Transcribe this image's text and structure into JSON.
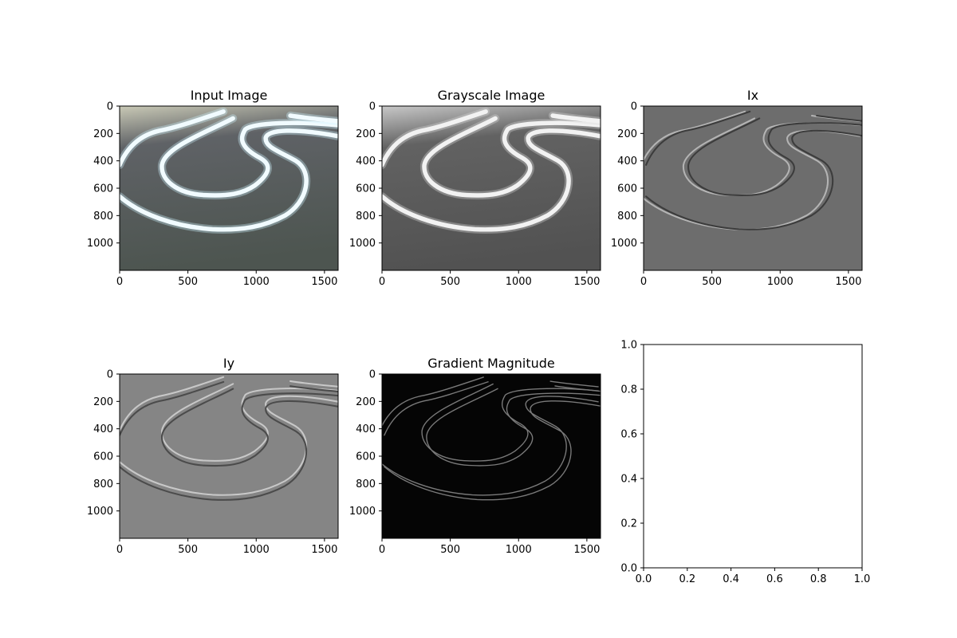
{
  "figure": {
    "background": "#ffffff"
  },
  "panels": [
    {
      "id": "input",
      "title": "Input Image",
      "kind": "image",
      "style": "color",
      "xticks": [
        0,
        500,
        1000,
        1500
      ],
      "yticks": [
        0,
        200,
        400,
        600,
        800,
        1000
      ],
      "xlim": [
        0,
        1600
      ],
      "ylim": [
        1200,
        0
      ],
      "colors": {
        "bg_top": "#c9c9b6",
        "bg_mid": "#5f6266",
        "bg_bot": "#4d5550",
        "line": "#f1fbff",
        "glow": "#cdf3ff"
      }
    },
    {
      "id": "gray",
      "title": "Grayscale Image",
      "kind": "image",
      "style": "gray",
      "xticks": [
        0,
        500,
        1000,
        1500
      ],
      "yticks": [
        0,
        200,
        400,
        600,
        800,
        1000
      ],
      "xlim": [
        0,
        1600
      ],
      "ylim": [
        1200,
        0
      ],
      "colors": {
        "bg_top": "#c8c8c8",
        "bg_mid": "#626262",
        "bg_bot": "#525252",
        "line": "#f2f2f2",
        "glow": "#dadada"
      }
    },
    {
      "id": "ix",
      "title": "Ix",
      "kind": "image",
      "style": "gradient",
      "xticks": [
        0,
        500,
        1000,
        1500
      ],
      "yticks": [
        0,
        200,
        400,
        600,
        800,
        1000
      ],
      "xlim": [
        0,
        1600
      ],
      "ylim": [
        1200,
        0
      ],
      "colors": {
        "bg": "#6d6d6d",
        "hi": "#b4b4b4",
        "lo": "#3c3c3c"
      }
    },
    {
      "id": "iy",
      "title": "Iy",
      "kind": "image",
      "style": "gradient",
      "xticks": [
        0,
        500,
        1000,
        1500
      ],
      "yticks": [
        0,
        200,
        400,
        600,
        800,
        1000
      ],
      "xlim": [
        0,
        1600
      ],
      "ylim": [
        1200,
        0
      ],
      "colors": {
        "bg": "#858585",
        "hi": "#c8c8c8",
        "lo": "#4b4b4b"
      }
    },
    {
      "id": "mag",
      "title": "Gradient Magnitude",
      "kind": "image",
      "style": "magnitude",
      "xticks": [
        0,
        500,
        1000,
        1500
      ],
      "yticks": [
        0,
        200,
        400,
        600,
        800,
        1000
      ],
      "xlim": [
        0,
        1600
      ],
      "ylim": [
        1200,
        0
      ],
      "colors": {
        "bg": "#050505",
        "line": "#7a7a7a"
      }
    },
    {
      "id": "empty",
      "title": "",
      "kind": "empty",
      "xticks": [
        "0.0",
        "0.2",
        "0.4",
        "0.6",
        "0.8",
        "1.0"
      ],
      "yticks": [
        "0.0",
        "0.2",
        "0.4",
        "0.6",
        "0.8",
        "1.0"
      ],
      "xlim": [
        0,
        1
      ],
      "ylim": [
        0,
        1
      ]
    }
  ]
}
